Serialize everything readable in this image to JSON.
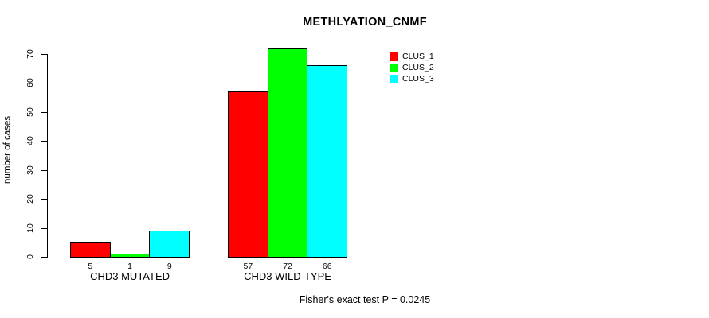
{
  "chart_data": {
    "type": "bar",
    "title": "METHLYATION_CNMF",
    "ylabel": "number of cases",
    "xlabel": "",
    "ylim": [
      0,
      70
    ],
    "yticks": [
      0,
      10,
      20,
      30,
      40,
      50,
      60,
      70
    ],
    "grid": false,
    "legend_position": "top-right-inside",
    "legend": [
      {
        "label": "CLUS_1",
        "color": "#ff0000"
      },
      {
        "label": "CLUS_2",
        "color": "#00ff00"
      },
      {
        "label": "CLUS_3",
        "color": "#00ffff"
      }
    ],
    "series_colors": [
      "#ff0000",
      "#00ff00",
      "#00ffff"
    ],
    "categories": [
      "CHD3 MUTATED",
      "CHD3 WILD-TYPE"
    ],
    "series": [
      {
        "name": "CLUS_1",
        "values": [
          5,
          57
        ]
      },
      {
        "name": "CLUS_2",
        "values": [
          1,
          72
        ]
      },
      {
        "name": "CLUS_3",
        "values": [
          9,
          66
        ]
      }
    ],
    "groups": [
      {
        "label": "CHD3 MUTATED",
        "values": [
          5,
          1,
          9
        ],
        "value_labels": [
          "5",
          "1",
          "9"
        ]
      },
      {
        "label": "CHD3 WILD-TYPE",
        "values": [
          57,
          72,
          66
        ],
        "value_labels": [
          "57",
          "72",
          "66"
        ]
      }
    ],
    "annotation": "Fisher's exact test P = 0.0245",
    "bar_border_color": "#000000",
    "text_color": "#000000",
    "background_color": "#ffffff"
  }
}
